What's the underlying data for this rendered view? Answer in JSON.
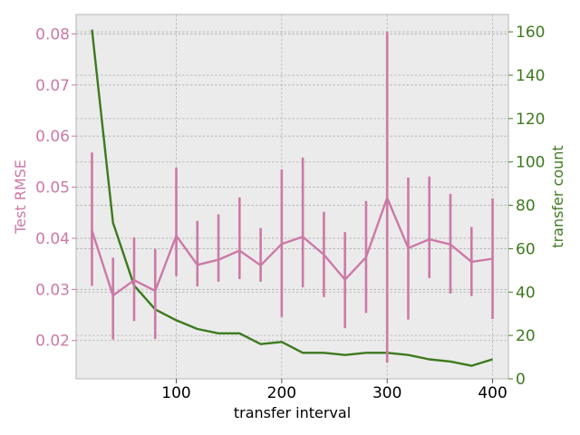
{
  "chart_data": {
    "type": "line",
    "title": "",
    "xlabel": "transfer interval",
    "ylabel_left": "Test RMSE",
    "ylabel_right": "transfer count",
    "xlim": [
      5,
      415
    ],
    "ylim_left": [
      0.0125,
      0.0838
    ],
    "ylim_right": [
      0,
      168
    ],
    "x_ticks": [
      100,
      200,
      300,
      400
    ],
    "y_left_ticks": [
      0.02,
      0.03,
      0.04,
      0.05,
      0.06,
      0.07,
      0.08
    ],
    "y_right_ticks": [
      0,
      20,
      40,
      60,
      80,
      100,
      120,
      140,
      160
    ],
    "grid": true,
    "colors": {
      "rmse": "#cc79a7",
      "count": "#3d7a1e",
      "plot_bg": "#ebebeb",
      "grid": "#b0b0b0"
    },
    "series": [
      {
        "axis": "left",
        "type": "errorbar-line",
        "x": [
          20,
          40,
          60,
          80,
          100,
          120,
          140,
          160,
          180,
          200,
          220,
          240,
          260,
          280,
          300,
          320,
          340,
          360,
          380,
          400
        ],
        "values": [
          0.0415,
          0.0288,
          0.0318,
          0.0297,
          0.0405,
          0.0348,
          0.0358,
          0.0376,
          0.0347,
          0.0389,
          0.0403,
          0.0368,
          0.0319,
          0.0363,
          0.0479,
          0.0381,
          0.0398,
          0.0388,
          0.0354,
          0.036
        ],
        "upper": [
          0.0568,
          0.0362,
          0.0402,
          0.0379,
          0.0538,
          0.0434,
          0.0447,
          0.048,
          0.042,
          0.0535,
          0.0558,
          0.0452,
          0.0412,
          0.0473,
          0.0805,
          0.0519,
          0.0521,
          0.0487,
          0.0422,
          0.0478
        ],
        "lower": [
          0.0307,
          0.0202,
          0.0238,
          0.0203,
          0.0326,
          0.0306,
          0.0315,
          0.032,
          0.0315,
          0.0246,
          0.0304,
          0.0285,
          0.0224,
          0.0254,
          0.0157,
          0.0241,
          0.0322,
          0.0292,
          0.0287,
          0.0242
        ]
      },
      {
        "axis": "right",
        "type": "line",
        "x": [
          20,
          40,
          60,
          80,
          100,
          120,
          140,
          160,
          180,
          200,
          220,
          240,
          260,
          280,
          300,
          320,
          340,
          360,
          380,
          400
        ],
        "values": [
          161,
          72,
          43,
          32,
          27,
          23,
          21,
          21,
          16,
          17,
          12,
          12,
          11,
          12,
          12,
          11,
          9,
          8,
          6,
          9
        ]
      }
    ]
  }
}
